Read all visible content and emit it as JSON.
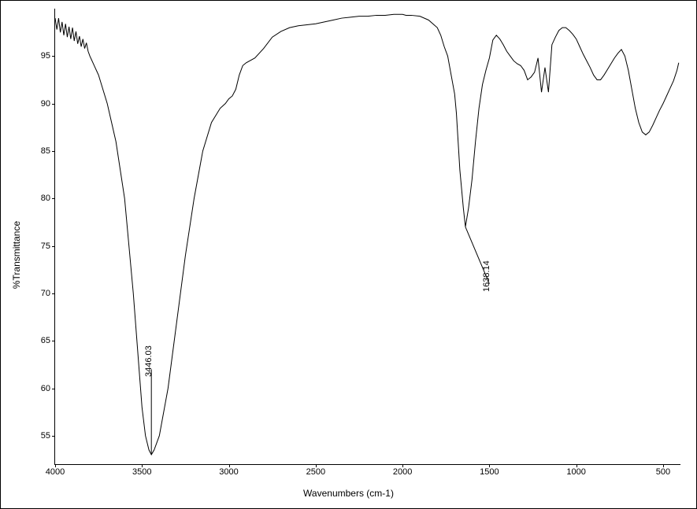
{
  "chart": {
    "type": "line",
    "xlabel": "Wavenumbers (cm-1)",
    "ylabel": "%Transmittance",
    "xlim": [
      4000,
      400
    ],
    "ylim": [
      52,
      100
    ],
    "x_ticks": [
      4000,
      3500,
      3000,
      2500,
      2000,
      1500,
      1000,
      500
    ],
    "y_ticks": [
      55,
      60,
      65,
      70,
      75,
      80,
      85,
      90,
      95
    ],
    "x_tick_labels": [
      "4000",
      "3500",
      "3000",
      "2500",
      "2000",
      "1500",
      "1000",
      "500"
    ],
    "y_tick_labels": [
      "55",
      "60",
      "65",
      "70",
      "75",
      "80",
      "85",
      "90",
      "95"
    ],
    "line_color": "#000000",
    "line_width": 1,
    "background_color": "#ffffff",
    "axis_color": "#000000",
    "label_fontsize": 12,
    "tick_fontsize": 11,
    "series": {
      "wavenumber": [
        4000,
        3990,
        3980,
        3970,
        3960,
        3950,
        3940,
        3930,
        3920,
        3910,
        3900,
        3890,
        3880,
        3870,
        3860,
        3850,
        3840,
        3830,
        3820,
        3810,
        3800,
        3790,
        3780,
        3770,
        3760,
        3750,
        3700,
        3650,
        3600,
        3550,
        3500,
        3480,
        3460,
        3446,
        3430,
        3400,
        3350,
        3300,
        3250,
        3200,
        3150,
        3100,
        3050,
        3020,
        3000,
        2980,
        2960,
        2940,
        2920,
        2900,
        2850,
        2800,
        2750,
        2700,
        2650,
        2600,
        2550,
        2500,
        2450,
        2400,
        2350,
        2300,
        2250,
        2200,
        2150,
        2100,
        2050,
        2000,
        1980,
        1950,
        1900,
        1850,
        1800,
        1780,
        1760,
        1740,
        1720,
        1700,
        1690,
        1680,
        1670,
        1660,
        1650,
        1638,
        1620,
        1600,
        1580,
        1560,
        1540,
        1520,
        1500,
        1480,
        1460,
        1440,
        1420,
        1400,
        1380,
        1360,
        1340,
        1320,
        1300,
        1280,
        1260,
        1240,
        1220,
        1200,
        1180,
        1160,
        1140,
        1120,
        1100,
        1080,
        1060,
        1040,
        1020,
        1000,
        980,
        960,
        940,
        920,
        900,
        880,
        860,
        840,
        820,
        800,
        780,
        760,
        740,
        720,
        700,
        680,
        660,
        640,
        620,
        600,
        580,
        560,
        540,
        520,
        500,
        480,
        460,
        440,
        420,
        410
      ],
      "transmittance": [
        99,
        97.8,
        99,
        97.5,
        98.6,
        97.2,
        98.4,
        97,
        98.1,
        96.8,
        98,
        96.6,
        97.6,
        96.3,
        97.1,
        96,
        96.8,
        95.8,
        96.4,
        95.5,
        95,
        94.6,
        94.2,
        93.8,
        93.4,
        93,
        90,
        86,
        80,
        70,
        58,
        55,
        53.5,
        53,
        53.5,
        55,
        60,
        67,
        74,
        80,
        85,
        88,
        89.5,
        90,
        90.5,
        90.8,
        91.5,
        93,
        94,
        94.3,
        94.8,
        95.8,
        97,
        97.6,
        98,
        98.2,
        98.3,
        98.4,
        98.6,
        98.8,
        99,
        99.1,
        99.2,
        99.2,
        99.3,
        99.3,
        99.4,
        99.4,
        99.3,
        99.3,
        99.2,
        98.8,
        98,
        97.2,
        96,
        95,
        93,
        91,
        89,
        86,
        83,
        81,
        79,
        77,
        79,
        82,
        86,
        89.5,
        92,
        93.5,
        94.8,
        96.7,
        97.2,
        96.8,
        96.2,
        95.5,
        95,
        94.5,
        94.2,
        94,
        93.5,
        92.5,
        92.8,
        93.3,
        94.8,
        91.2,
        93.8,
        91.2,
        96.2,
        97,
        97.7,
        98,
        98,
        97.7,
        97.3,
        96.8,
        96,
        95.2,
        94.5,
        93.8,
        93,
        92.5,
        92.5,
        93,
        93.6,
        94.2,
        94.8,
        95.3,
        95.7,
        95,
        93.5,
        91.5,
        89.5,
        88,
        87,
        86.7,
        87,
        87.7,
        88.5,
        89.3,
        90,
        90.8,
        91.6,
        92.4,
        93.5,
        94.3,
        94.5
      ]
    },
    "peak_labels": [
      {
        "text": "3446.03",
        "x": 3446,
        "y_min": 53,
        "y_label_at": 62
      },
      {
        "text": "1638.14",
        "x": 1638,
        "y_min": 77,
        "y_label_end_wavenumber": 1500,
        "y_label_end_trans": 71
      }
    ]
  }
}
